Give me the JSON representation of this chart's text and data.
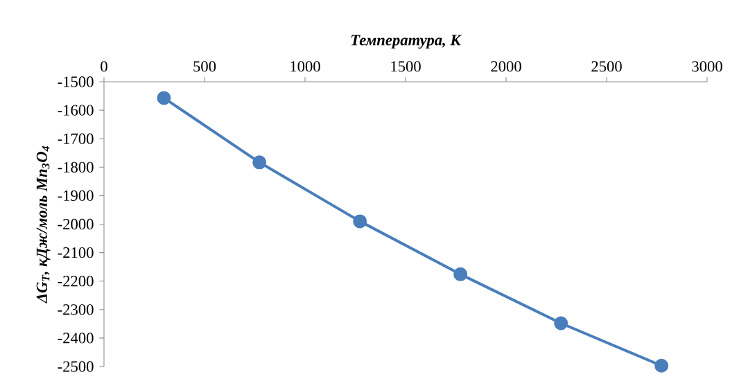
{
  "chart_data": {
    "type": "line",
    "xlabel": "Температура, К",
    "ylabel": "ΔG$_{T}$, кДж/моль Mn$_{3}$O$_{4}$",
    "x": [
      298,
      773,
      1273,
      1773,
      2273,
      2773
    ],
    "series": [
      {
        "color": "#4a7ebb",
        "values": [
          -1557,
          -1783,
          -1990,
          -2176,
          -2348,
          -2497
        ]
      }
    ],
    "xlim": [
      0,
      3000
    ],
    "xticks": [
      0,
      500,
      1000,
      1500,
      2000,
      2500,
      3000
    ],
    "ylim": [
      -2500,
      -1500
    ],
    "yticks": [
      -1500,
      -1600,
      -1700,
      -1800,
      -1900,
      -2000,
      -2100,
      -2200,
      -2300,
      -2400,
      -2500
    ],
    "marker": "circle",
    "line_style": "solid"
  }
}
